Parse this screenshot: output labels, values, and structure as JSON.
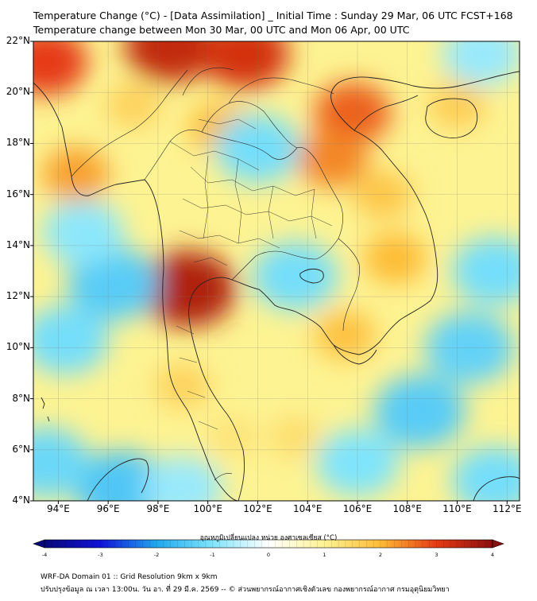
{
  "header": {
    "title": "Temperature Change (°C) - [Data Assimilation] _ Initial Time : Sunday 29 Mar, 06 UTC FCST+168",
    "subtitle": "Temperature change between Mon 30 Mar, 00 UTC and Mon 06 Apr, 00 UTC"
  },
  "map": {
    "lat_labels": [
      "22°N",
      "20°N",
      "18°N",
      "16°N",
      "14°N",
      "12°N",
      "10°N",
      "8°N",
      "6°N",
      "4°N"
    ],
    "lon_labels": [
      "94°E",
      "96°E",
      "98°E",
      "100°E",
      "102°E",
      "104°E",
      "106°E",
      "108°E",
      "110°E",
      "112°E"
    ],
    "lat_range": [
      4,
      22
    ],
    "lon_range": [
      93,
      112.5
    ],
    "field_anomalies": [
      {
        "lon": 99.2,
        "lat": 12.3,
        "value": 3.6
      },
      {
        "lon": 98.5,
        "lat": 21.8,
        "value": 3.4
      },
      {
        "lon": 101.5,
        "lat": 21.5,
        "value": 3.2
      },
      {
        "lon": 93.5,
        "lat": 21.2,
        "value": 3.0
      },
      {
        "lon": 105.8,
        "lat": 19.2,
        "value": 2.7
      },
      {
        "lon": 105.0,
        "lat": 17.4,
        "value": 2.4
      },
      {
        "lon": 94.7,
        "lat": 16.8,
        "value": 2.2
      },
      {
        "lon": 100.5,
        "lat": 18.6,
        "value": 2.0
      },
      {
        "lon": 107.5,
        "lat": 13.5,
        "value": 2.0
      },
      {
        "lon": 105.5,
        "lat": 10.5,
        "value": 1.9
      },
      {
        "lon": 110.0,
        "lat": 19.5,
        "value": 1.7
      },
      {
        "lon": 97.0,
        "lat": 19.5,
        "value": 1.6
      },
      {
        "lon": 107.0,
        "lat": 16.0,
        "value": 1.8
      },
      {
        "lon": 99.0,
        "lat": 8.5,
        "value": 1.6
      },
      {
        "lon": 101.0,
        "lat": 6.5,
        "value": 1.3
      },
      {
        "lon": 103.5,
        "lat": 6.5,
        "value": 1.4
      },
      {
        "lon": 102.0,
        "lat": 17.8,
        "value": -1.1
      },
      {
        "lon": 103.5,
        "lat": 12.8,
        "value": -1.1
      },
      {
        "lon": 96.2,
        "lat": 12.5,
        "value": -1.4
      },
      {
        "lon": 95.0,
        "lat": 14.5,
        "value": -0.9
      },
      {
        "lon": 94.3,
        "lat": 10.3,
        "value": -1.1
      },
      {
        "lon": 96.5,
        "lat": 4.5,
        "value": -1.5
      },
      {
        "lon": 93.5,
        "lat": 5.5,
        "value": -1.2
      },
      {
        "lon": 108.5,
        "lat": 7.5,
        "value": -1.4
      },
      {
        "lon": 110.5,
        "lat": 10.0,
        "value": -1.3
      },
      {
        "lon": 111.5,
        "lat": 13.0,
        "value": -1.1
      },
      {
        "lon": 106.0,
        "lat": 5.5,
        "value": -1.0
      },
      {
        "lon": 111.5,
        "lat": 4.8,
        "value": -1.1
      },
      {
        "lon": 111.0,
        "lat": 21.5,
        "value": -0.8
      },
      {
        "lon": 99.0,
        "lat": 4.5,
        "value": -0.8
      }
    ]
  },
  "colorbar": {
    "title": "อุณหภูมิเปลี่ยนแปลง หน่วย องศาเซลเซียส (°C)",
    "min": -4,
    "max": 4,
    "ticks": [
      "-4",
      "-3",
      "-2",
      "-1",
      "0",
      "1",
      "2",
      "3",
      "4"
    ]
  },
  "footer": {
    "line1": "WRF-DA Domain 01 :: Grid Resolution 9km x 9km",
    "line2": "ปรับปรุงข้อมูล ณ เวลา 13:00น. วัน อา. ที่ 29 มี.ค. 2569 -- © ส่วนพยากรณ์อากาศเชิงตัวเลข กองพยากรณ์อากาศ กรมอุตุนิยมวิทยา"
  },
  "colors": {
    "neg4": "#08087a",
    "neg3": "#1212d8",
    "neg2": "#20a8ee",
    "neg1": "#7fe4fb",
    "zero": "#ffffff",
    "pos1": "#fdf392",
    "pos2": "#fdbb36",
    "pos3": "#e53a12",
    "pos4": "#8b0f0f",
    "coast": "#222222"
  }
}
